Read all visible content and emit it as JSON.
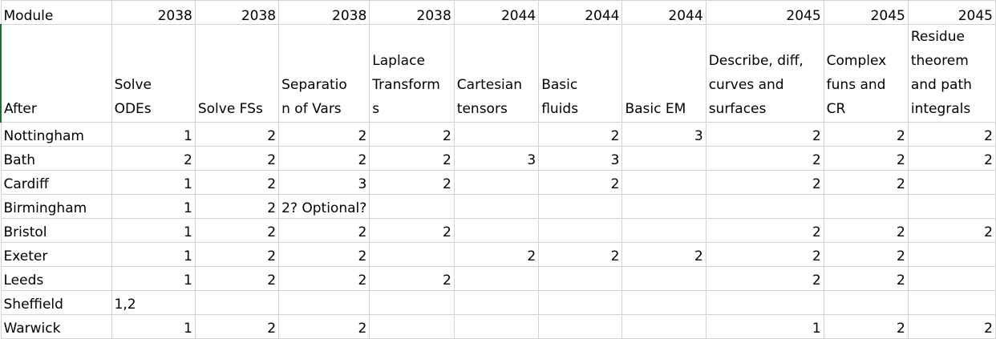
{
  "header": {
    "a": "Module",
    "years": [
      "2038",
      "2038",
      "2038",
      "2038",
      "2044",
      "2044",
      "2044",
      "2045",
      "2045",
      "2045"
    ]
  },
  "subheader": {
    "a": "After",
    "topics": [
      "Solve\nODEs",
      "Solve FSs",
      "Separatio\nn of Vars",
      "Laplace\nTransform\ns",
      "Cartesian\ntensors",
      "Basic\nfluids",
      "Basic EM",
      "Describe, diff,\ncurves and\nsurfaces",
      "Complex\nfuns and\nCR",
      "Residue\ntheorem\nand path\nintegrals"
    ]
  },
  "rows": [
    {
      "name": "Nottingham",
      "cells": [
        "1",
        "2",
        "2",
        "2",
        "",
        "2",
        "3",
        "2",
        "2",
        "2"
      ]
    },
    {
      "name": "Bath",
      "cells": [
        "2",
        "2",
        "2",
        "2",
        "3",
        "3",
        "",
        "2",
        "2",
        "2"
      ]
    },
    {
      "name": "Cardiff",
      "cells": [
        "1",
        "2",
        "3",
        "2",
        "",
        "2",
        "",
        "2",
        "2",
        ""
      ]
    },
    {
      "name": "Birmingham",
      "cells": [
        "1",
        "2",
        "2? Optional?",
        "",
        "",
        "",
        "",
        "",
        "",
        ""
      ]
    },
    {
      "name": "Bristol",
      "cells": [
        "1",
        "2",
        "2",
        "2",
        "",
        "",
        "",
        "2",
        "2",
        "2"
      ]
    },
    {
      "name": "Exeter",
      "cells": [
        "1",
        "2",
        "2",
        "",
        "2",
        "2",
        "2",
        "2",
        "2",
        ""
      ]
    },
    {
      "name": "Leeds",
      "cells": [
        "1",
        "2",
        "2",
        "2",
        "",
        "",
        "",
        "2",
        "2",
        ""
      ]
    },
    {
      "name": "Sheffield",
      "cells": [
        "1,2",
        "",
        "",
        "",
        "",
        "",
        "",
        "",
        "",
        ""
      ]
    },
    {
      "name": "Warwick",
      "cells": [
        "1",
        "2",
        "2",
        "",
        "",
        "",
        "",
        "1",
        "2",
        "2"
      ]
    }
  ]
}
